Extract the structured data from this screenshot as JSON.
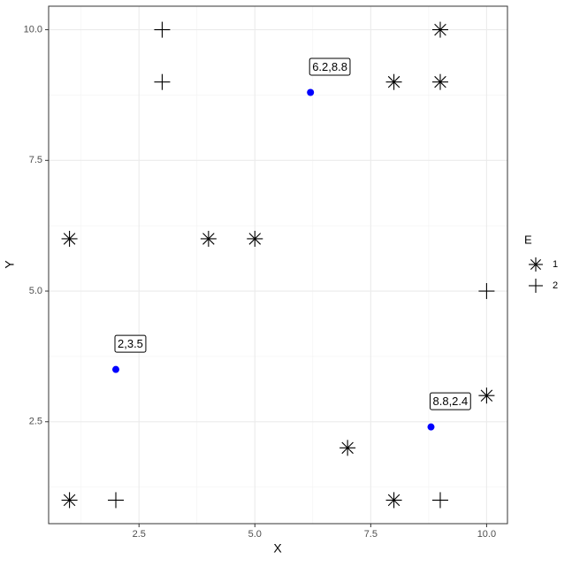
{
  "chart_data": {
    "type": "scatter",
    "x_label": "X",
    "y_label": "Y",
    "xlim": [
      0.55,
      10.45
    ],
    "ylim": [
      0.55,
      10.45
    ],
    "xticks": [
      {
        "value": 2.5,
        "label": "2.5"
      },
      {
        "value": 5,
        "label": "5.0"
      },
      {
        "value": 7.5,
        "label": "7.5"
      },
      {
        "value": 10,
        "label": "10.0"
      }
    ],
    "yticks": [
      {
        "value": 2.5,
        "label": "2.5"
      },
      {
        "value": 5,
        "label": "5.0"
      },
      {
        "value": 7.5,
        "label": "7.5"
      },
      {
        "value": 10,
        "label": "10.0"
      }
    ],
    "grid": true,
    "legend_title": "E",
    "legend_position": "right",
    "series": [
      {
        "name": "1",
        "color": "#000000",
        "marker": "asterisk",
        "x": [
          9,
          8,
          9,
          1,
          4,
          5,
          10,
          7,
          1,
          8
        ],
        "y": [
          10,
          9,
          9,
          6,
          6,
          6,
          3,
          2,
          1,
          1
        ]
      },
      {
        "name": "2",
        "color": "#000000",
        "marker": "plus",
        "x": [
          3,
          3,
          10,
          2,
          9
        ],
        "y": [
          10,
          9,
          5,
          1,
          1
        ]
      }
    ],
    "highlights": {
      "color": "#0000ff",
      "x": [
        6.2,
        2,
        8.8
      ],
      "y": [
        8.8,
        3.5,
        2.4
      ],
      "labels": [
        "6.2,8.8",
        "2,3.5",
        "8.8,2.4"
      ]
    }
  }
}
